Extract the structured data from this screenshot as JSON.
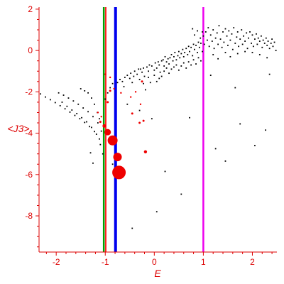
{
  "chart_data": {
    "type": "scatter",
    "title": "",
    "xlabel": "E",
    "ylabel": "<J3>",
    "xlim": [
      -2.35,
      2.5
    ],
    "ylim": [
      -9.75,
      2.1
    ],
    "grid": false,
    "x_ticks": [
      -2,
      -1,
      0,
      1,
      2
    ],
    "x_tick_labels": [
      "-2",
      "-1",
      "0",
      "1",
      "2"
    ],
    "y_ticks": [
      2,
      0,
      -2,
      -4,
      -6,
      -8
    ],
    "y_tick_labels": [
      "2",
      "0",
      "-2",
      "-4",
      "-6",
      "-8"
    ],
    "colors": {
      "axis": "#dd0000",
      "points": "#000000",
      "highlight_points": "#ee0000",
      "line_green": "#00a000",
      "line_red": "#ff2020",
      "line_blue": "#0000ee",
      "line_magenta": "#ee00ee"
    },
    "vertical_lines": [
      {
        "x": -1.03,
        "color": "#00a000",
        "width": 2.5
      },
      {
        "x": -0.99,
        "color": "#ff2020",
        "width": 2
      },
      {
        "x": -0.79,
        "color": "#0000ee",
        "width": 4
      },
      {
        "x": 1.0,
        "color": "#ee00ee",
        "width": 2.5
      }
    ],
    "series": [
      {
        "marker": "dot",
        "points": [
          [
            -2.32,
            -2.1
          ],
          [
            -2.22,
            -2.25
          ],
          [
            -2.12,
            -2.38
          ],
          [
            -2.02,
            -2.52
          ],
          [
            -1.92,
            -2.67
          ],
          [
            -1.82,
            -2.82
          ],
          [
            -1.72,
            -2.98
          ],
          [
            -1.62,
            -3.14
          ],
          [
            -1.52,
            -3.3
          ],
          [
            -1.42,
            -3.48
          ],
          [
            -1.32,
            -3.68
          ],
          [
            -1.22,
            -3.92
          ],
          [
            -1.12,
            -4.28
          ],
          [
            -1.95,
            -2.05
          ],
          [
            -1.85,
            -2.16
          ],
          [
            -1.75,
            -2.3
          ],
          [
            -1.65,
            -2.44
          ],
          [
            -1.55,
            -2.6
          ],
          [
            -1.45,
            -2.78
          ],
          [
            -1.35,
            -2.96
          ],
          [
            -1.25,
            -3.2
          ],
          [
            -1.15,
            -3.5
          ],
          [
            -1.08,
            -3.9
          ],
          [
            -1.88,
            -2.5
          ],
          [
            -1.78,
            -2.7
          ],
          [
            -1.68,
            -2.88
          ],
          [
            -1.58,
            -3.05
          ],
          [
            -1.48,
            -3.25
          ],
          [
            -1.38,
            -3.45
          ],
          [
            -1.28,
            -3.72
          ],
          [
            -1.18,
            -4.05
          ],
          [
            -1.1,
            -4.55
          ],
          [
            -1.05,
            -5.0
          ],
          [
            -1.5,
            -1.85
          ],
          [
            -1.42,
            -1.95
          ],
          [
            -1.35,
            -2.05
          ],
          [
            -1.28,
            -2.3
          ],
          [
            -1.22,
            -2.6
          ],
          [
            -1.16,
            -3.0
          ],
          [
            -1.12,
            -3.3
          ],
          [
            -1.0,
            -2.35
          ],
          [
            -0.95,
            -2.05
          ],
          [
            -0.9,
            -1.8
          ],
          [
            -0.85,
            -1.6
          ],
          [
            -0.75,
            -1.55
          ],
          [
            -0.7,
            -1.4
          ],
          [
            -0.65,
            -1.5
          ],
          [
            -0.62,
            -1.75
          ],
          [
            -0.6,
            -1.3
          ],
          [
            -0.55,
            -1.2
          ],
          [
            -0.5,
            -1.35
          ],
          [
            -0.48,
            -1.1
          ],
          [
            -0.45,
            -1.55
          ],
          [
            -0.42,
            -1.25
          ],
          [
            -0.4,
            -1.0
          ],
          [
            -0.35,
            -1.15
          ],
          [
            -0.32,
            -0.9
          ],
          [
            -0.3,
            -1.4
          ],
          [
            -0.25,
            -1.05
          ],
          [
            -0.22,
            -0.85
          ],
          [
            -0.2,
            -1.25
          ],
          [
            -0.15,
            -0.8
          ],
          [
            -0.12,
            -1.0
          ],
          [
            -0.1,
            -0.7
          ],
          [
            -0.05,
            -0.75
          ],
          [
            0.0,
            -0.95
          ],
          [
            0.02,
            -0.6
          ],
          [
            0.05,
            -0.85
          ],
          [
            0.08,
            -0.55
          ],
          [
            0.1,
            -0.7
          ],
          [
            0.12,
            -1.05
          ],
          [
            -0.28,
            -0.9
          ],
          [
            -0.22,
            -1.6
          ],
          [
            -0.18,
            -1.9
          ],
          [
            -0.12,
            -1.3
          ],
          [
            -0.08,
            -1.55
          ],
          [
            0.0,
            -1.2
          ],
          [
            0.05,
            -1.5
          ],
          [
            0.1,
            -1.35
          ],
          [
            0.15,
            -1.25
          ],
          [
            0.15,
            -0.5
          ],
          [
            0.18,
            -0.45
          ],
          [
            0.2,
            -0.75
          ],
          [
            0.22,
            -0.3
          ],
          [
            0.25,
            -0.55
          ],
          [
            0.28,
            -0.4
          ],
          [
            0.3,
            -0.65
          ],
          [
            0.32,
            -0.35
          ],
          [
            0.35,
            -0.2
          ],
          [
            0.38,
            -0.5
          ],
          [
            0.4,
            -0.3
          ],
          [
            0.42,
            -0.1
          ],
          [
            0.45,
            -0.45
          ],
          [
            0.48,
            -0.25
          ],
          [
            0.5,
            -0.05
          ],
          [
            0.52,
            -0.35
          ],
          [
            0.55,
            -0.15
          ],
          [
            0.58,
            0.05
          ],
          [
            0.6,
            -0.3
          ],
          [
            0.62,
            -0.1
          ],
          [
            0.65,
            0.1
          ],
          [
            0.68,
            -0.2
          ],
          [
            0.7,
            0.2
          ],
          [
            0.72,
            -0.05
          ],
          [
            0.75,
            0.15
          ],
          [
            0.78,
            -0.25
          ],
          [
            0.8,
            0.3
          ],
          [
            0.82,
            0.05
          ],
          [
            0.85,
            0.25
          ],
          [
            0.88,
            -0.1
          ],
          [
            0.9,
            0.4
          ],
          [
            0.92,
            0.15
          ],
          [
            0.95,
            0.35
          ],
          [
            0.98,
            -0.05
          ],
          [
            0.2,
            -1.0
          ],
          [
            0.25,
            -0.85
          ],
          [
            0.3,
            -1.1
          ],
          [
            0.35,
            -0.9
          ],
          [
            0.4,
            -0.8
          ],
          [
            0.45,
            -0.7
          ],
          [
            0.5,
            -0.95
          ],
          [
            0.55,
            -0.75
          ],
          [
            0.6,
            -0.6
          ],
          [
            0.65,
            -0.85
          ],
          [
            0.7,
            -0.55
          ],
          [
            0.75,
            -0.7
          ],
          [
            0.8,
            -0.45
          ],
          [
            0.85,
            -0.65
          ],
          [
            0.9,
            -0.35
          ],
          [
            0.95,
            -0.5
          ],
          [
            1.0,
            0.7
          ],
          [
            1.02,
            0.3
          ],
          [
            1.05,
            0.9
          ],
          [
            1.08,
            0.5
          ],
          [
            1.1,
            1.1
          ],
          [
            1.12,
            0.2
          ],
          [
            1.15,
            0.75
          ],
          [
            1.18,
            0.45
          ],
          [
            1.2,
            1.0
          ],
          [
            1.22,
            0.1
          ],
          [
            1.25,
            0.6
          ],
          [
            1.28,
            0.85
          ],
          [
            1.3,
            0.3
          ],
          [
            1.32,
            1.2
          ],
          [
            1.35,
            0.55
          ],
          [
            1.38,
            0.15
          ],
          [
            1.4,
            0.9
          ],
          [
            1.42,
            0.4
          ],
          [
            1.45,
            1.05
          ],
          [
            1.48,
            0.7
          ],
          [
            1.5,
            0.25
          ],
          [
            1.52,
            0.95
          ],
          [
            1.55,
            0.5
          ],
          [
            1.58,
            0.8
          ],
          [
            1.6,
            0.05
          ],
          [
            1.62,
            1.1
          ],
          [
            1.65,
            0.35
          ],
          [
            1.68,
            0.65
          ],
          [
            1.7,
            0.9
          ],
          [
            1.72,
            0.2
          ],
          [
            1.75,
            0.55
          ],
          [
            1.78,
            1.0
          ],
          [
            1.8,
            0.3
          ],
          [
            1.82,
            0.7
          ],
          [
            1.85,
            0.45
          ],
          [
            1.88,
            0.85
          ],
          [
            1.9,
            0.1
          ],
          [
            1.92,
            0.6
          ],
          [
            1.95,
            0.9
          ],
          [
            1.98,
            0.35
          ],
          [
            2.0,
            0.75
          ],
          [
            2.02,
            0.2
          ],
          [
            2.05,
            0.55
          ],
          [
            2.08,
            0.8
          ],
          [
            2.1,
            0.3
          ],
          [
            2.12,
            0.6
          ],
          [
            2.15,
            0.45
          ],
          [
            2.18,
            0.7
          ],
          [
            2.2,
            0.15
          ],
          [
            2.22,
            0.5
          ],
          [
            2.25,
            0.35
          ],
          [
            2.28,
            0.6
          ],
          [
            2.3,
            0.25
          ],
          [
            2.32,
            0.45
          ],
          [
            2.35,
            0.1
          ],
          [
            2.38,
            0.35
          ],
          [
            2.4,
            0.55
          ],
          [
            2.42,
            0.2
          ],
          [
            2.45,
            0.4
          ],
          [
            2.48,
            0.0
          ],
          [
            0.78,
            1.05
          ],
          [
            0.82,
            0.75
          ],
          [
            0.88,
            0.95
          ],
          [
            0.94,
            0.6
          ],
          [
            0.98,
            0.9
          ],
          [
            1.2,
            -0.2
          ],
          [
            1.3,
            -0.4
          ],
          [
            1.45,
            -0.1
          ],
          [
            1.55,
            -0.3
          ],
          [
            1.7,
            -0.15
          ],
          [
            1.85,
            -0.05
          ],
          [
            2.0,
            -0.1
          ],
          [
            2.15,
            -0.2
          ],
          [
            2.3,
            -0.35
          ],
          [
            1.15,
            -1.2
          ],
          [
            1.65,
            -1.8
          ],
          [
            2.35,
            -1.15
          ],
          [
            1.75,
            -3.55
          ],
          [
            2.27,
            -3.85
          ],
          [
            1.25,
            -4.75
          ],
          [
            1.45,
            -5.35
          ],
          [
            2.05,
            -4.6
          ],
          [
            0.72,
            -3.25
          ],
          [
            0.22,
            -5.85
          ],
          [
            0.55,
            -6.95
          ],
          [
            0.05,
            -7.8
          ],
          [
            -0.45,
            -8.6
          ],
          [
            -0.05,
            -3.3
          ],
          [
            -0.3,
            -2.9
          ],
          [
            -0.55,
            -2.6
          ],
          [
            -1.25,
            -5.45
          ],
          [
            -0.85,
            -5.5
          ],
          [
            -1.3,
            -4.95
          ]
        ]
      },
      {
        "marker": "circle",
        "points": [
          [
            -1.15,
            -3.0,
            1.2
          ],
          [
            -1.08,
            -3.2,
            1.2
          ],
          [
            -1.1,
            -3.45,
            1.5
          ],
          [
            -1.02,
            -3.65,
            2.5
          ],
          [
            -0.95,
            -3.95,
            4.5
          ],
          [
            -0.85,
            -4.35,
            7
          ],
          [
            -0.75,
            -5.15,
            6
          ],
          [
            -0.72,
            -5.9,
            9.5
          ],
          [
            -0.95,
            -2.5,
            1.5
          ],
          [
            -0.9,
            -1.95,
            1.5
          ],
          [
            -0.82,
            -1.85,
            1.2
          ],
          [
            -0.68,
            -2.05,
            1.2
          ],
          [
            -0.48,
            -2.25,
            1.2
          ],
          [
            -0.38,
            -2.0,
            1.2
          ],
          [
            -0.25,
            -1.5,
            1.5
          ],
          [
            -0.28,
            -2.6,
            1.2
          ],
          [
            -0.45,
            -3.05,
            1.5
          ],
          [
            -0.22,
            -3.4,
            1.5
          ],
          [
            -0.3,
            -3.5,
            1.5
          ],
          [
            -0.18,
            -4.9,
            2.2
          ],
          [
            -1.0,
            -1.15,
            1.2
          ],
          [
            -0.9,
            -1.3,
            1.2
          ]
        ]
      }
    ]
  }
}
